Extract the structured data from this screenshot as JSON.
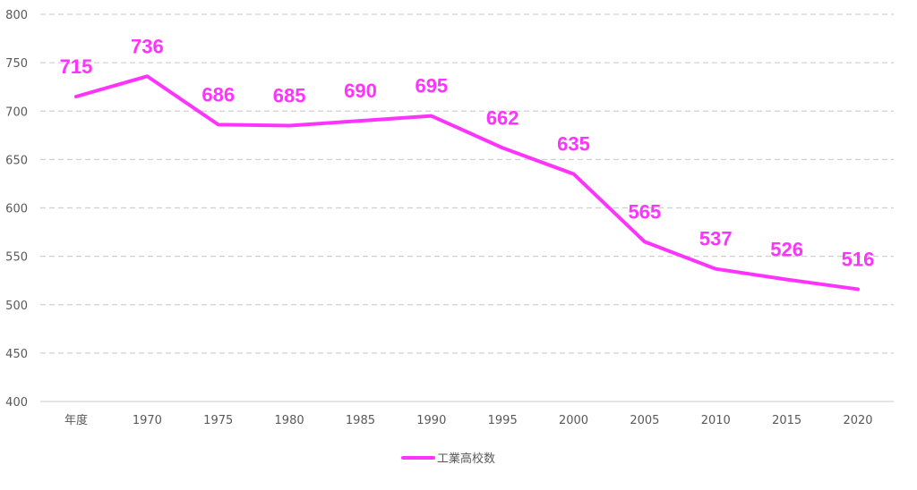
{
  "chart_data": {
    "type": "line",
    "categories": [
      "年度",
      "1970",
      "1975",
      "1980",
      "1985",
      "1990",
      "1995",
      "2000",
      "2005",
      "2010",
      "2015",
      "2020"
    ],
    "series": [
      {
        "name": "工業高校数",
        "color": "#ff33ff",
        "values": [
          715,
          736,
          686,
          685,
          690,
          695,
          662,
          635,
          565,
          537,
          526,
          516
        ]
      }
    ],
    "ylim": [
      400,
      800
    ],
    "yticks": [
      400,
      450,
      500,
      550,
      600,
      650,
      700,
      750,
      800
    ],
    "grid": true,
    "legend_position": "bottom"
  }
}
